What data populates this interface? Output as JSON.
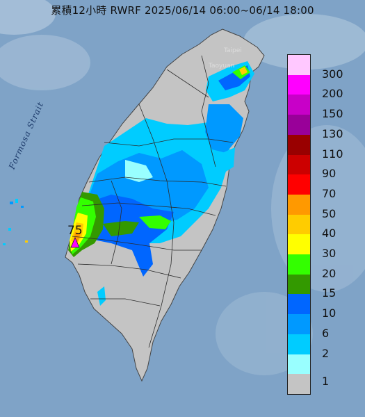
{
  "title": "累積12小時 RWRF 2025/06/14 06:00~06/14 18:00",
  "map": {
    "sea_label": "Formosa Strait",
    "city_labels": [
      "Taipei",
      "Taoyuan"
    ],
    "max_value_label": "75",
    "colors": {
      "sea": "#7fa3c7",
      "land": "#c4c4c4",
      "boundary": "#2b2b2b"
    }
  },
  "legend": {
    "levels": [
      {
        "label": "300",
        "color": "#ffc8ff"
      },
      {
        "label": "200",
        "color": "#ff00ff"
      },
      {
        "label": "150",
        "color": "#c800c8"
      },
      {
        "label": "130",
        "color": "#990099"
      },
      {
        "label": "110",
        "color": "#990000"
      },
      {
        "label": "90",
        "color": "#cc0000"
      },
      {
        "label": "70",
        "color": "#ff0000"
      },
      {
        "label": "50",
        "color": "#ff9900"
      },
      {
        "label": "40",
        "color": "#ffcc00"
      },
      {
        "label": "30",
        "color": "#ffff00"
      },
      {
        "label": "20",
        "color": "#33ff00"
      },
      {
        "label": "15",
        "color": "#339900"
      },
      {
        "label": "10",
        "color": "#0066ff"
      },
      {
        "label": "6",
        "color": "#0099ff"
      },
      {
        "label": "2",
        "color": "#00ccff"
      },
      {
        "label": "1",
        "color": "#99ffff"
      },
      {
        "label": "",
        "color": "#c4c4c4"
      }
    ]
  }
}
